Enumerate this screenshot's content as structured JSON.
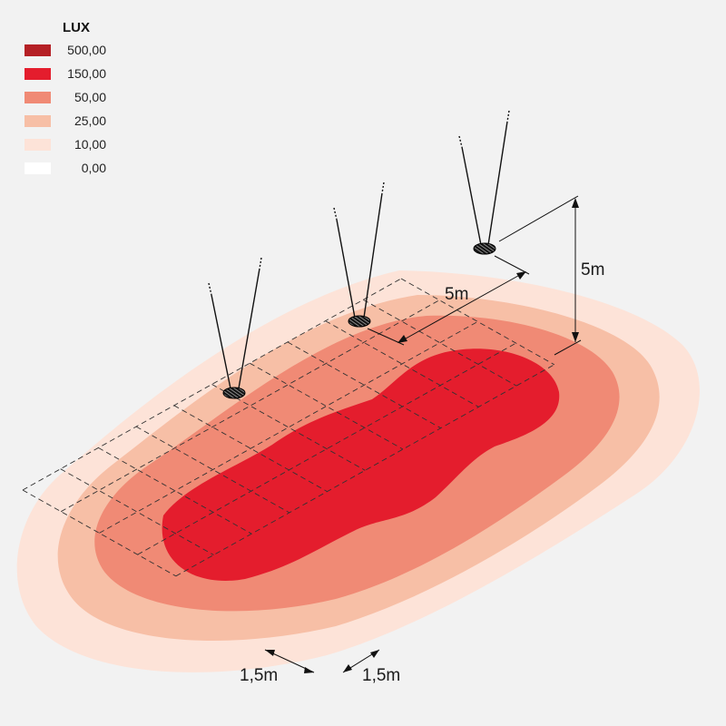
{
  "legend": {
    "title": "LUX",
    "items": [
      {
        "label": "500,00",
        "color": "#b52025"
      },
      {
        "label": "150,00",
        "color": "#e41d2d"
      },
      {
        "label": "50,00",
        "color": "#f08a75"
      },
      {
        "label": "25,00",
        "color": "#f7bfa6"
      },
      {
        "label": "10,00",
        "color": "#fde3d8"
      },
      {
        "label": "0,00",
        "color": "#ffffff"
      }
    ]
  },
  "dimensions": {
    "height": "5m",
    "spacing": "5m",
    "grid_a": "1,5m",
    "grid_b": "1,5m"
  },
  "icons": {
    "luminaire": "pendant-luminaire-icon"
  }
}
